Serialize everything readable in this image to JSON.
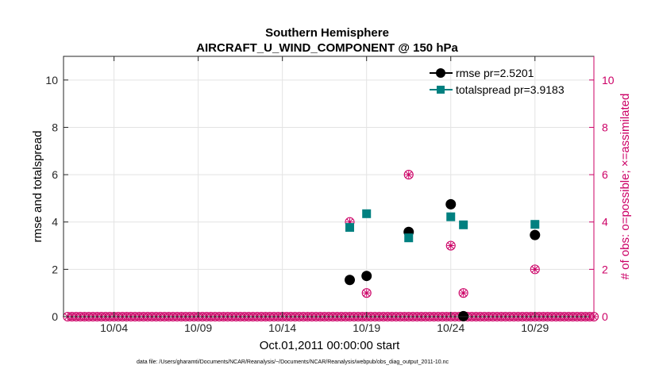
{
  "chart_data": {
    "type": "scatter",
    "title": "Southern Hemisphere",
    "subtitle": "AIRCRAFT_U_WIND_COMPONENT @ 150 hPa",
    "xlabel": "Oct.01,2011 00:00:00 start",
    "ylabel": "rmse and totalspread",
    "ylabel_right": "# of obs: o=possible; ×=assimilated",
    "x_range": [
      0,
      31.5
    ],
    "ylim": [
      0,
      11
    ],
    "ylim_right": [
      0,
      11
    ],
    "x_ticks": [
      {
        "x": 3,
        "label": "10/04"
      },
      {
        "x": 8,
        "label": "10/09"
      },
      {
        "x": 13,
        "label": "10/14"
      },
      {
        "x": 18,
        "label": "10/19"
      },
      {
        "x": 23,
        "label": "10/24"
      },
      {
        "x": 28,
        "label": "10/29"
      }
    ],
    "y_ticks": [
      0,
      2,
      4,
      6,
      8,
      10
    ],
    "y_ticks_right": [
      0,
      2,
      4,
      6,
      8,
      10
    ],
    "grid": true,
    "legend_position": "top-right",
    "series": [
      {
        "name": "rmse pr=2.5201",
        "color": "#000000",
        "marker": "circle",
        "points": [
          [
            17,
            1.55
          ],
          [
            18,
            1.72
          ],
          [
            20.5,
            3.58
          ],
          [
            23,
            4.75
          ],
          [
            23.75,
            0.02
          ],
          [
            28,
            3.45
          ]
        ]
      },
      {
        "name": "totalspread pr=3.9183",
        "color": "#008080",
        "marker": "square",
        "points": [
          [
            17,
            3.77
          ],
          [
            18,
            4.35
          ],
          [
            20.5,
            3.33
          ],
          [
            23,
            4.22
          ],
          [
            23.75,
            3.88
          ],
          [
            28,
            3.9
          ]
        ]
      }
    ],
    "obs_counts": {
      "color": "#cc0066",
      "step": 0.25,
      "x_start": 0.25,
      "x_end": 31.5,
      "nonzero": [
        [
          17,
          4
        ],
        [
          18,
          1
        ],
        [
          20.5,
          6
        ],
        [
          23,
          3
        ],
        [
          23.75,
          1
        ],
        [
          28,
          2
        ]
      ]
    },
    "footnote": "data file: /Users/gharamti/Documents/NCAR/Reanalysis/~/Documents/NCAR/Reanalysis/webpub/obs_diag_output_2011-10.nc"
  }
}
